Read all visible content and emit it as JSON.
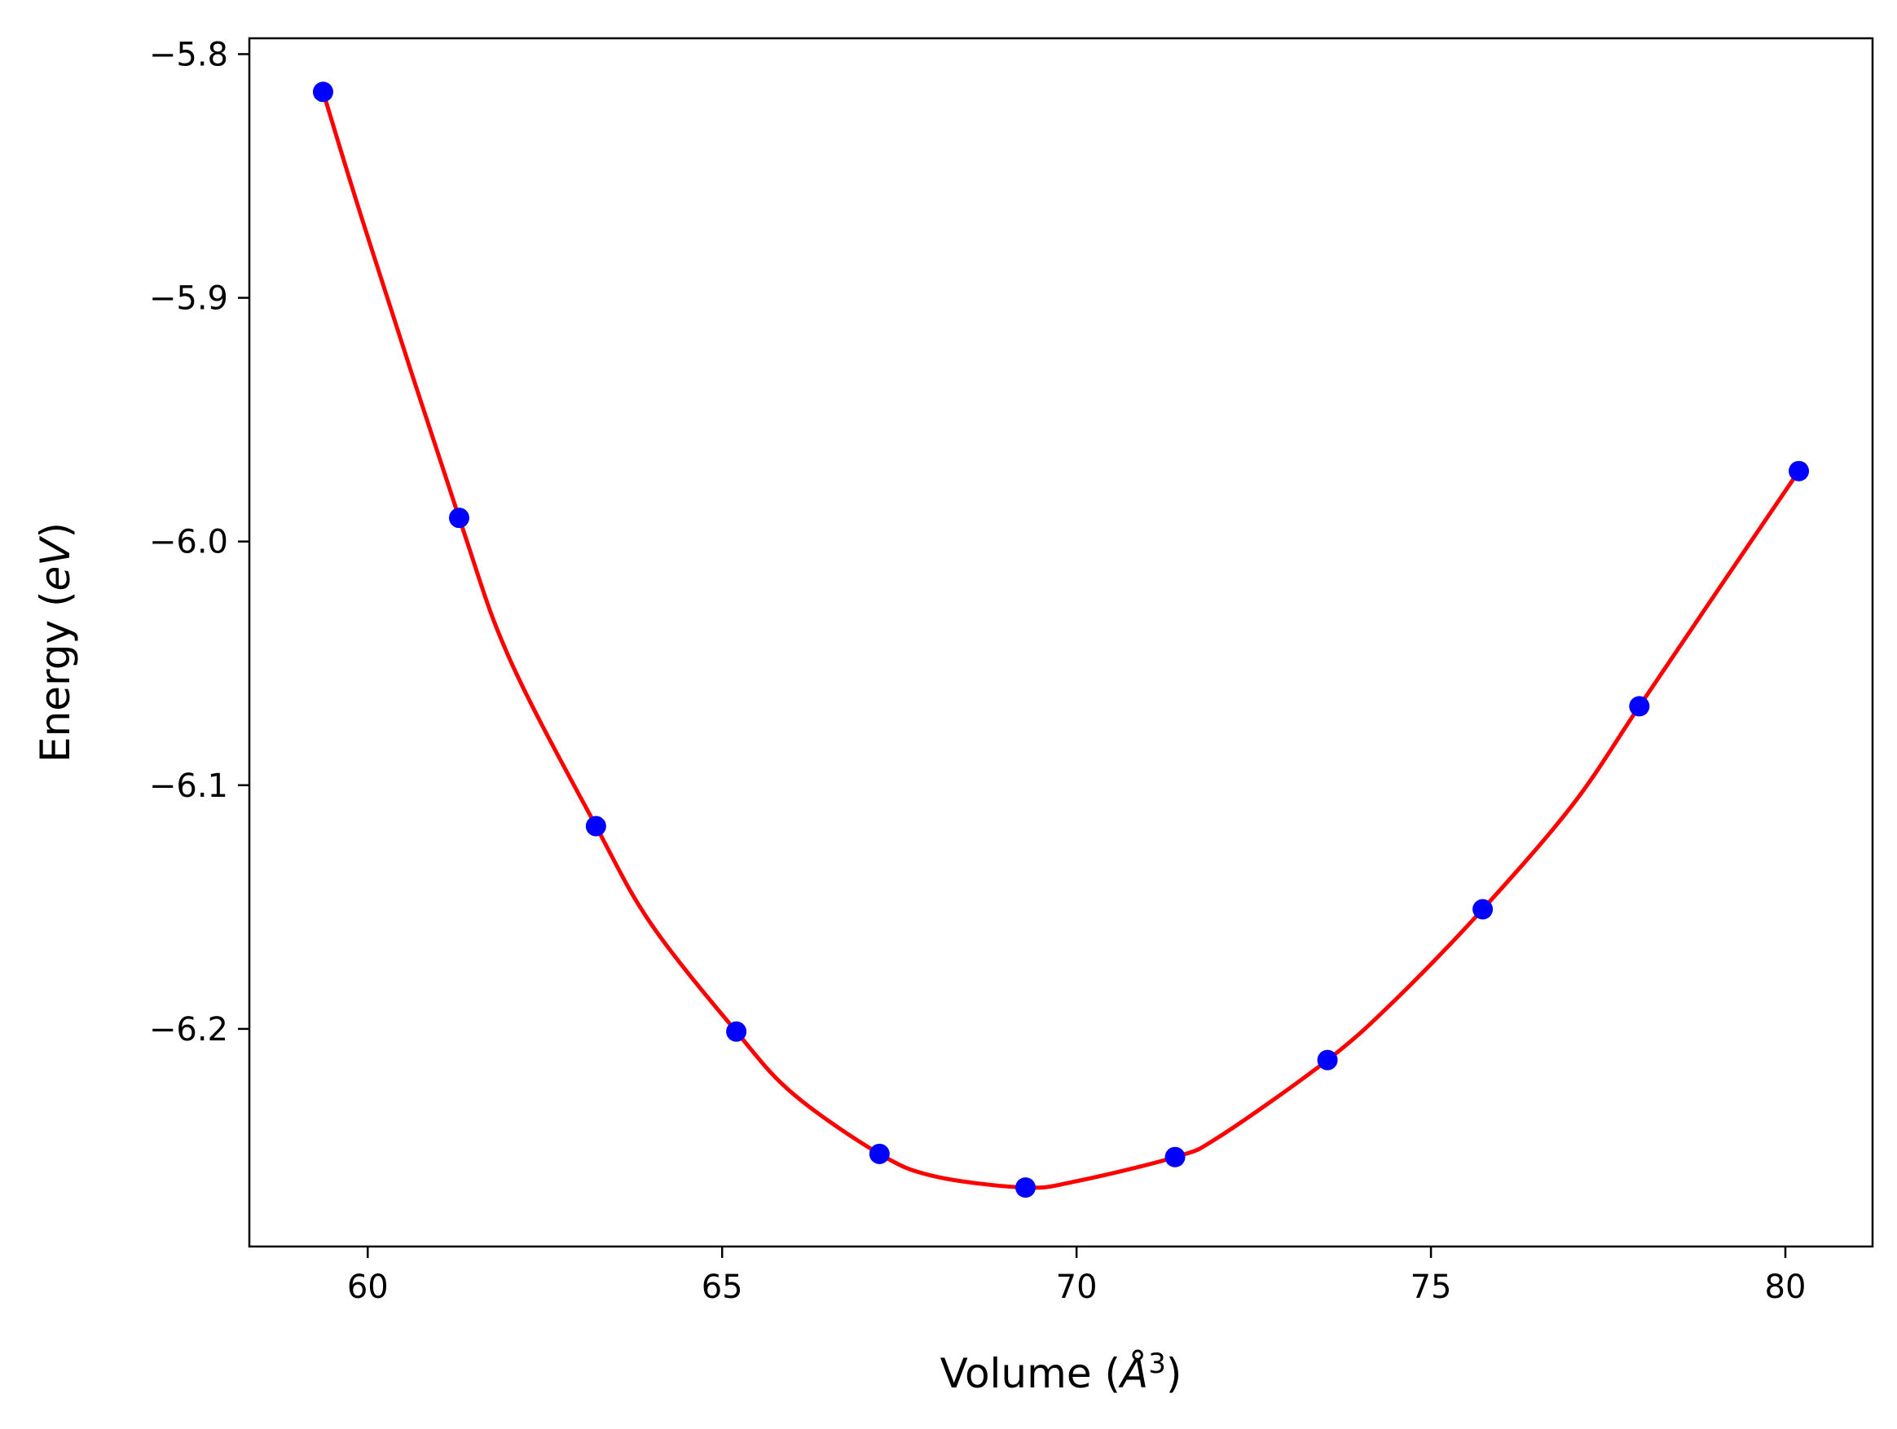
{
  "colors": {
    "curve": "#ff0000",
    "points": "#0000ff",
    "axes": "#000000",
    "background": "#ffffff"
  },
  "chart_data": {
    "type": "scatter",
    "title": "",
    "xlabel_main": "Volume (",
    "xlabel_sym": "Å",
    "xlabel_sup": "3",
    "xlabel_end": ")",
    "ylabel_main": "Energy (",
    "ylabel_sym": "eV",
    "ylabel_end": ")",
    "xlim": [
      58.33,
      81.23
    ],
    "ylim": [
      -6.2893,
      -5.7935
    ],
    "grid": false,
    "legend": "none",
    "xticks": [
      {
        "value": 60,
        "label": "60"
      },
      {
        "value": 65,
        "label": "65"
      },
      {
        "value": 70,
        "label": "70"
      },
      {
        "value": 75,
        "label": "75"
      },
      {
        "value": 80,
        "label": "80"
      }
    ],
    "yticks": [
      {
        "value": -5.8,
        "label": "−5.8"
      },
      {
        "value": -5.9,
        "label": "−5.9"
      },
      {
        "value": -6.0,
        "label": "−6.0"
      },
      {
        "value": -6.1,
        "label": "−6.1"
      },
      {
        "value": -6.2,
        "label": "−6.2"
      }
    ],
    "series": [
      {
        "kind": "points",
        "x": [
          59.37,
          61.29,
          63.22,
          65.2,
          67.22,
          69.28,
          71.39,
          73.54,
          75.73,
          77.94,
          80.19
        ],
        "y": [
          -5.8155,
          -5.9903,
          -6.1168,
          -6.2011,
          -6.2513,
          -6.2651,
          -6.2526,
          -6.2128,
          -6.1509,
          -6.0676,
          -5.9711
        ]
      },
      {
        "kind": "fit-curve",
        "x": [
          59.37,
          60.0,
          61.29,
          62.0,
          63.22,
          64.0,
          65.2,
          66.0,
          67.22,
          68.0,
          69.28,
          70.0,
          71.39,
          72.0,
          73.54,
          74.5,
          75.73,
          77.0,
          77.94,
          79.0,
          80.19
        ],
        "y": [
          -5.8155,
          -5.875,
          -5.9903,
          -6.048,
          -6.1168,
          -6.157,
          -6.2011,
          -6.2266,
          -6.2513,
          -6.2605,
          -6.2651,
          -6.2625,
          -6.2526,
          -6.2445,
          -6.2128,
          -6.188,
          -6.1509,
          -6.108,
          -6.0676,
          -6.022,
          -5.9711
        ]
      }
    ]
  }
}
